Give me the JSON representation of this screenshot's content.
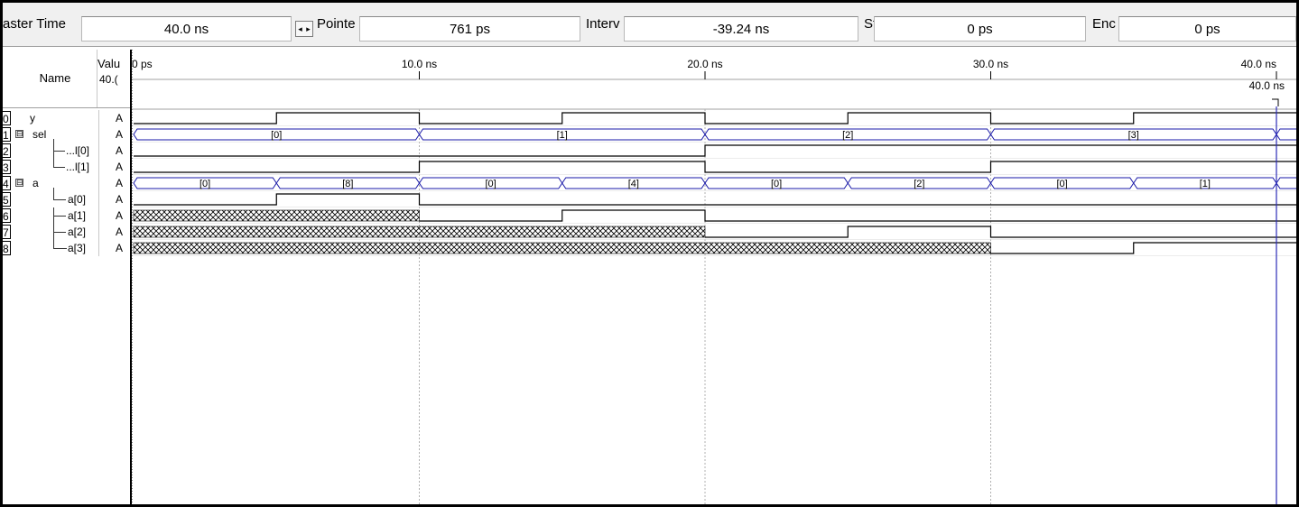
{
  "toolbar": {
    "master_time_label": "aster Time",
    "master_time_value": "40.0 ns",
    "pointer_label": "Pointe",
    "pointer_value": "761 ps",
    "interval_label": "Interv",
    "interval_value": "-39.24 ns",
    "start_label": "Sta",
    "start_value": "0 ps",
    "end_label": "Enc",
    "end_value": "0 ps"
  },
  "header": {
    "name_label": "Name",
    "value_label": "Valu",
    "value_sub": "40.(",
    "timeline_ticks": [
      "0 ps",
      "10.0 ns",
      "20.0 ns",
      "30.0 ns",
      "40.0 ns"
    ],
    "cursor_label": "40.0 ns"
  },
  "signals": [
    {
      "index": "0",
      "name": "y",
      "value": "A",
      "expander": ""
    },
    {
      "index": "1",
      "name": "sel",
      "value": "A",
      "expander": "⊟"
    },
    {
      "index": "2",
      "name": "...l[0]",
      "value": "A",
      "expander": ""
    },
    {
      "index": "3",
      "name": "...l[1]",
      "value": "A",
      "expander": ""
    },
    {
      "index": "4",
      "name": "a",
      "value": "A",
      "expander": "⊟"
    },
    {
      "index": "5",
      "name": "a[0]",
      "value": "A",
      "expander": ""
    },
    {
      "index": "6",
      "name": "a[1]",
      "value": "A",
      "expander": ""
    },
    {
      "index": "7",
      "name": "a[2]",
      "value": "A",
      "expander": ""
    },
    {
      "index": "8",
      "name": "a[3]",
      "value": "A",
      "expander": ""
    }
  ],
  "waveforms": {
    "time_end_ns": 40,
    "y": [
      [
        0,
        0
      ],
      [
        5,
        1
      ],
      [
        10,
        0
      ],
      [
        15,
        1
      ],
      [
        20,
        0
      ],
      [
        25,
        1
      ],
      [
        30,
        0
      ],
      [
        35,
        1
      ],
      [
        40,
        1
      ]
    ],
    "sel": [
      {
        "start": 0,
        "end": 10,
        "label": "[0]"
      },
      {
        "start": 10,
        "end": 20,
        "label": "[1]"
      },
      {
        "start": 20,
        "end": 30,
        "label": "[2]"
      },
      {
        "start": 30,
        "end": 40,
        "label": "[3]"
      }
    ],
    "sel0": [
      [
        0,
        0
      ],
      [
        20,
        1
      ],
      [
        40,
        1
      ]
    ],
    "sel1": [
      [
        0,
        0
      ],
      [
        10,
        1
      ],
      [
        20,
        0
      ],
      [
        30,
        1
      ],
      [
        40,
        1
      ]
    ],
    "a": [
      {
        "start": 0,
        "end": 5,
        "label": "[0]"
      },
      {
        "start": 5,
        "end": 10,
        "label": "[8]"
      },
      {
        "start": 10,
        "end": 15,
        "label": "[0]"
      },
      {
        "start": 15,
        "end": 20,
        "label": "[4]"
      },
      {
        "start": 20,
        "end": 25,
        "label": "[0]"
      },
      {
        "start": 25,
        "end": 30,
        "label": "[2]"
      },
      {
        "start": 30,
        "end": 35,
        "label": "[0]"
      },
      {
        "start": 35,
        "end": 40,
        "label": "[1]"
      }
    ],
    "a0": [
      [
        0,
        0
      ],
      [
        5,
        1
      ],
      [
        10,
        0
      ],
      [
        40,
        0
      ]
    ],
    "a1": {
      "undefined_until": 10,
      "levels": [
        [
          10,
          0
        ],
        [
          15,
          1
        ],
        [
          20,
          0
        ],
        [
          40,
          0
        ]
      ]
    },
    "a2": {
      "undefined_until": 20,
      "levels": [
        [
          20,
          0
        ],
        [
          25,
          1
        ],
        [
          30,
          0
        ],
        [
          40,
          0
        ]
      ]
    },
    "a3": {
      "undefined_until": 30,
      "levels": [
        [
          30,
          0
        ],
        [
          35,
          1
        ],
        [
          40,
          1
        ]
      ]
    }
  },
  "colors": {
    "bus": "#1a1aa8",
    "cursor": "#2b2bb8",
    "signal": "#000000",
    "grid": "#b0b0b0"
  }
}
